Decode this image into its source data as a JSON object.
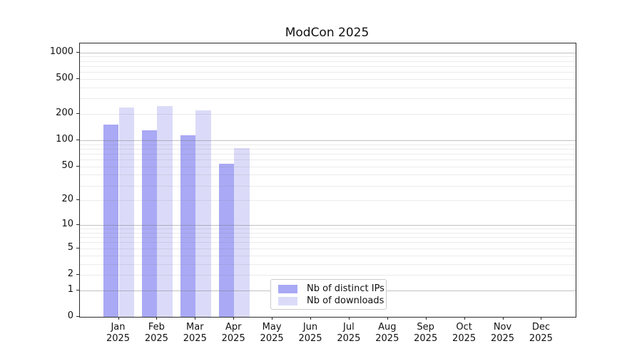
{
  "title": "ModCon 2025",
  "year_label": "2025",
  "chart_data": {
    "type": "bar",
    "title": "ModCon 2025",
    "categories": [
      "Jan",
      "Feb",
      "Mar",
      "Apr",
      "May",
      "Jun",
      "Jul",
      "Aug",
      "Sep",
      "Oct",
      "Nov",
      "Dec"
    ],
    "category_year": "2025",
    "series": [
      {
        "name": "Nb of distinct IPs",
        "color": "#a9a9f5",
        "values": [
          150,
          130,
          114,
          54,
          0,
          0,
          0,
          0,
          0,
          0,
          0,
          0
        ]
      },
      {
        "name": "Nb of downloads",
        "color": "#dbdbf9",
        "values": [
          238,
          247,
          218,
          82,
          0,
          0,
          0,
          0,
          0,
          0,
          0,
          0
        ]
      }
    ],
    "xlabel": "",
    "ylabel": "",
    "y_scale": "log1p",
    "y_ticks": [
      0,
      1,
      2,
      5,
      10,
      20,
      50,
      100,
      200,
      500,
      1000
    ],
    "y_tick_labels": [
      "0",
      "1",
      "2",
      "5",
      "10",
      "20",
      "50",
      "100",
      "200",
      "500",
      "1000"
    ],
    "ylim": [
      0,
      1270
    ],
    "grid": "both",
    "legend_position": "lower center"
  }
}
